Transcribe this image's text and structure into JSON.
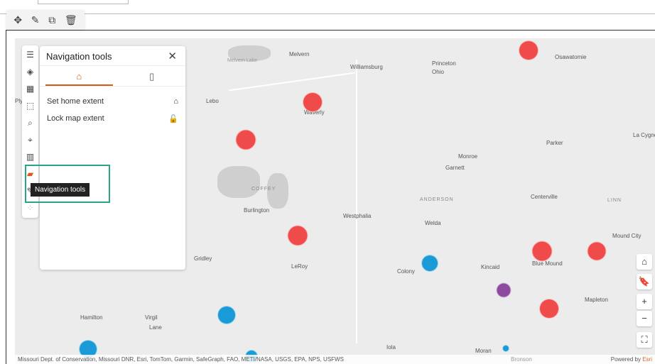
{
  "toolbar": {
    "move": "✥",
    "edit": "✎",
    "duplicate": "⧉",
    "delete": "🗑"
  },
  "panel": {
    "title": "Navigation tools",
    "close": "✕",
    "tabs": [
      {
        "icon": "home-extent-icon",
        "glyph": "⌂"
      },
      {
        "icon": "bookmark-icon",
        "glyph": "▯"
      }
    ],
    "items": [
      {
        "label": "Set home extent",
        "icon": "⌂"
      },
      {
        "label": "Lock map extent",
        "icon": "🔓"
      }
    ]
  },
  "tooltip": "Navigation tools",
  "sidebar": [
    "☰",
    "◈",
    "▦",
    "⬚",
    "⌕",
    "⌖",
    "▥",
    "▰",
    "✎",
    "⁘"
  ],
  "map": {
    "labels": [
      "Melvern",
      "Williamsburg",
      "Princeton",
      "Ohio",
      "Osawatomie",
      "Lebo",
      "Waverly",
      "Parker",
      "La Cygne",
      "Monroe",
      "Garnett",
      "Burlington",
      "Westphalia",
      "ANDERSON",
      "COFFEY",
      "Centerville",
      "LINN",
      "Welda",
      "Mound City",
      "Gridley",
      "LeRoy",
      "Colony",
      "Kincaid",
      "Blue Mound",
      "Mapleton",
      "Hamilton",
      "Virgil",
      "Lane",
      "Iola",
      "Moran",
      "Bronson",
      "Melvern Lake",
      "Ply"
    ],
    "colors": {
      "red": "#ef4b4b",
      "blue": "#1a9ad6",
      "purple": "#8e4a9e"
    },
    "controls": [
      "⌂",
      "🔖",
      "+",
      "−",
      "⛶"
    ]
  },
  "attribution": "Missouri Dept. of Conservation, Missouri DNR, Esri, TomTom, Garmin, SafeGraph, FAO, METI/NASA, USGS, EPA, NPS, USFWS",
  "powered": "Powered by ",
  "esri": "Esri"
}
